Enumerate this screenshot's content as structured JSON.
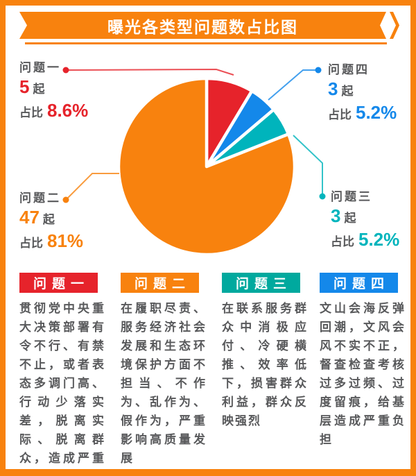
{
  "frame_color": "#f8820e",
  "title": {
    "text": "曝光各类型问题数占比图"
  },
  "text_color": "#58595b",
  "chart_data": {
    "type": "pie",
    "title": "曝光各类型问题数占比图",
    "unit": "起",
    "slices": [
      {
        "key": "q1",
        "name": "问题一",
        "count": 5,
        "pct": 8.6,
        "color": "#e6232b"
      },
      {
        "key": "q2",
        "name": "问题二",
        "count": 47,
        "pct": 81,
        "color": "#f8820e"
      },
      {
        "key": "q3",
        "name": "问题三",
        "count": 3,
        "pct": 5.2,
        "color": "#00b4bc"
      },
      {
        "key": "q4",
        "name": "问题四",
        "count": 3,
        "pct": 5.2,
        "color": "#1488ea"
      }
    ],
    "clockwise_from_top": [
      0,
      3,
      2,
      1
    ],
    "legend_position": "callout-labels",
    "grid": false
  },
  "labels": {
    "q1": {
      "name": "问题一",
      "count": "5",
      "unit": "起",
      "pct_label": "占比",
      "pct": "8.6%"
    },
    "q2": {
      "name": "问题二",
      "count": "47",
      "unit": "起",
      "pct_label": "占比",
      "pct": "81%"
    },
    "q3": {
      "name": "问题三",
      "count": "3",
      "unit": "起",
      "pct_label": "占比",
      "pct": "5.2%"
    },
    "q4": {
      "name": "问题四",
      "count": "3",
      "unit": "起",
      "pct_label": "占比",
      "pct": "5.2%"
    }
  },
  "legend_cards": [
    {
      "title": "问题一",
      "color": "#e6232b",
      "text": "贯彻党中央重大决策部署有令不行、有禁不止，或者表态多调门高、行动少落实差，脱离实际、脱离群众，造成严重后果"
    },
    {
      "title": "问题二",
      "color": "#f8820e",
      "text": "在履职尽责、服务经济社会发展和生态环境保护方面不担当、不作为、乱作为、假作为，严重影响高质量发展"
    },
    {
      "title": "问题三",
      "color": "#00a99e",
      "text": "在联系服务群众中消极应付、冷硬横推、效率低下，损害群众利益，群众反映强烈"
    },
    {
      "title": "问题四",
      "color": "#1488ea",
      "text": "文山会海反弹回潮，文风会风不实不正，督查检查考核过多过频、过度留痕，给基层造成严重负担"
    }
  ]
}
